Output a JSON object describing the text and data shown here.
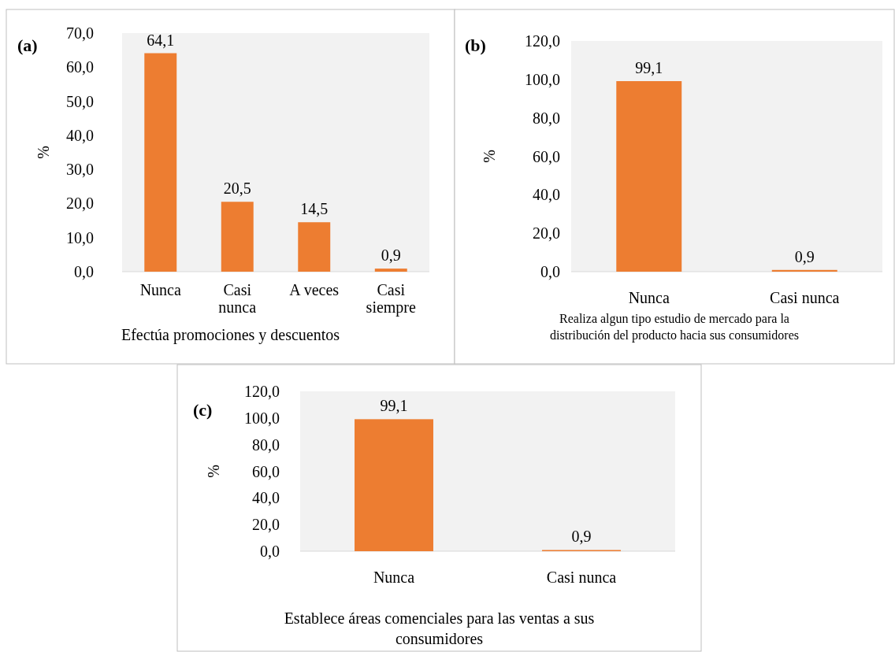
{
  "chart_data": [
    {
      "type": "bar",
      "annotations": [
        "(a)"
      ],
      "ylabel": "%",
      "xlabel": "Efectúa promociones y descuentos",
      "categories": [
        "Nunca",
        "Casi nunca",
        "A veces",
        "Casi siempre"
      ],
      "values": [
        64.1,
        20.5,
        14.5,
        0.9
      ],
      "value_labels": [
        "64,1",
        "20,5",
        "14,5",
        "0,9"
      ],
      "color": "#ed7d31",
      "ylim": [
        0,
        70
      ],
      "yticks": [
        {
          "value": 0,
          "label": "0,0"
        },
        {
          "value": 10,
          "label": "10,0"
        },
        {
          "value": 20,
          "label": "20,0"
        },
        {
          "value": 30,
          "label": "30,0"
        },
        {
          "value": 40,
          "label": "40,0"
        },
        {
          "value": 50,
          "label": "50,0"
        },
        {
          "value": 60,
          "label": "60,0"
        },
        {
          "value": 70,
          "label": "70,0"
        }
      ]
    },
    {
      "type": "bar",
      "annotations": [
        "(b)"
      ],
      "ylabel": "%",
      "xlabel": "Realiza algun tipo estudio de mercado para la distribución del producto hacia sus consumidores",
      "categories": [
        "Nunca",
        "Casi nunca"
      ],
      "values": [
        99.1,
        0.9
      ],
      "value_labels": [
        "99,1",
        "0,9"
      ],
      "color": "#ed7d31",
      "ylim": [
        0,
        120
      ],
      "yticks": [
        {
          "value": 0,
          "label": "0,0"
        },
        {
          "value": 20,
          "label": "20,0"
        },
        {
          "value": 40,
          "label": "40,0"
        },
        {
          "value": 60,
          "label": "60,0"
        },
        {
          "value": 80,
          "label": "80,0"
        },
        {
          "value": 100,
          "label": "100,0"
        },
        {
          "value": 120,
          "label": "120,0"
        }
      ]
    },
    {
      "type": "bar",
      "annotations": [
        "(c)"
      ],
      "ylabel": "%",
      "xlabel": "Establece áreas comenciales para las ventas a sus consumidores",
      "categories": [
        "Nunca",
        "Casi nunca"
      ],
      "values": [
        99.1,
        0.9
      ],
      "value_labels": [
        "99,1",
        "0,9"
      ],
      "color": "#ed7d31",
      "ylim": [
        0,
        120
      ],
      "yticks": [
        {
          "value": 0,
          "label": "0,0"
        },
        {
          "value": 20,
          "label": "20,0"
        },
        {
          "value": 40,
          "label": "40,0"
        },
        {
          "value": 60,
          "label": "60,0"
        },
        {
          "value": 80,
          "label": "80,0"
        },
        {
          "value": 100,
          "label": "100,0"
        },
        {
          "value": 120,
          "label": "120,0"
        }
      ]
    }
  ]
}
